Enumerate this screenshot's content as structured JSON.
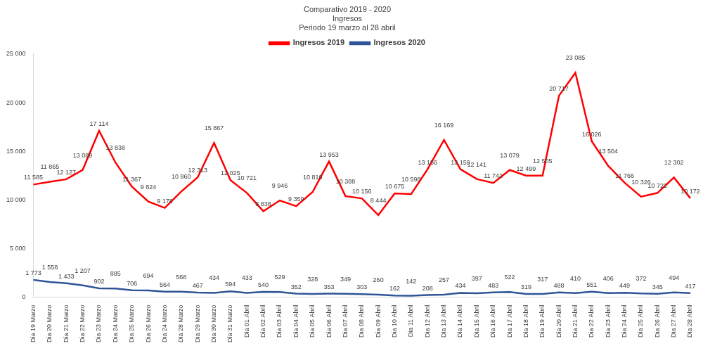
{
  "chart_data": {
    "type": "line",
    "title": [
      "Comparativo 2019 - 2020",
      "Ingresos",
      "Periodo 19 marzo al 28 abril"
    ],
    "categories": [
      "Dia 19 Marzo",
      "Dia 20 Marzo",
      "Dia 21 Marzo",
      "Dia 22 Marzo",
      "Dia 23 Marzo",
      "Dia 24 Marzo",
      "Dia 25 Marzo",
      "Dia 26 Marzo",
      "Dia 24 Marzo",
      "Dia 28 Marzo",
      "Dia 29 Marzo",
      "Dia 30 Marzo",
      "Dia 31 Marzo",
      "Dia 01 Abril",
      "Dia 02 Abril",
      "Dia 03 Abril",
      "Dia 04 Abril",
      "Dia 05 Abril",
      "Dia 06 Abril",
      "Dia 07 Abril",
      "Dia 08 Abril",
      "Dia 09 Abril",
      "Dia 10 Abril",
      "Dia 11 Abril",
      "Dia 12 Abril",
      "Dia 13 Abril",
      "Dia 14 Abril",
      "Dia 15 Abril",
      "Dia 16 Abril",
      "Dia 17 Abril",
      "Dia 18 Abril",
      "Dia 19 Abril",
      "Dia 20 Abril",
      "Dia 21 Abril",
      "Dia 22 Abril",
      "Dia 23 Abril",
      "Dia 24 Abril",
      "Dia 25 Abril",
      "Dia 26 Abril",
      "Dia 27 Abril",
      "Dia 28 Abril"
    ],
    "series": [
      {
        "name": "Ingresos 2019",
        "color": "#ff0000",
        "marker": "none",
        "line_style": "solid",
        "values": [
          11585,
          11865,
          12127,
          13089,
          17114,
          13838,
          11367,
          9824,
          9178,
          10860,
          12313,
          15867,
          12025,
          10721,
          8838,
          9946,
          9359,
          10810,
          13953,
          10388,
          10156,
          8444,
          10675,
          10598,
          13156,
          16169,
          13159,
          12141,
          11742,
          13079,
          12499,
          12505,
          20717,
          23085,
          16026,
          13504,
          11766,
          10326,
          10722,
          12302,
          10172
        ],
        "value_labels": [
          "11 585",
          "11 865",
          "12 127",
          "13 089",
          "17 114",
          "13 838",
          "11 367",
          "9 824",
          "9 178",
          "10 860",
          "12 313",
          "15 867",
          "12 025",
          "10 721",
          "8 838",
          "9 946",
          "9 359",
          "10 810",
          "13 953",
          "10 388",
          "10 156",
          "8 444",
          "10 675",
          "10 598",
          "13 156",
          "16 169",
          "13 159",
          "12 141",
          "11 742",
          "13 079",
          "12 499",
          "12 505",
          "20 717",
          "23 085",
          "16 026",
          "13 504",
          "11 766",
          "10 326",
          "10 722",
          "12 302",
          "10 172"
        ]
      },
      {
        "name": "Ingresos 2020",
        "color": "#2f5597",
        "marker": "none",
        "line_style": "solid",
        "values": [
          1773,
          1558,
          1433,
          1207,
          902,
          885,
          706,
          694,
          564,
          568,
          467,
          434,
          594,
          433,
          540,
          529,
          352,
          328,
          353,
          349,
          303,
          260,
          162,
          142,
          208,
          257,
          434,
          397,
          483,
          522,
          319,
          317,
          488,
          410,
          551,
          406,
          449,
          372,
          345,
          494,
          417
        ],
        "value_labels": [
          "1 773",
          "1 558",
          "1 433",
          "1 207",
          "902",
          "885",
          "706",
          "694",
          "564",
          "568",
          "467",
          "434",
          "594",
          "433",
          "540",
          "529",
          "352",
          "328",
          "353",
          "349",
          "303",
          "260",
          "162",
          "142",
          "208",
          "257",
          "434",
          "397",
          "483",
          "522",
          "319",
          "317",
          "488",
          "410",
          "551",
          "406",
          "449",
          "372",
          "345",
          "494",
          "417"
        ]
      }
    ],
    "ylim": [
      0,
      25000
    ],
    "yticks": [
      0,
      {
        "value": 5000,
        "label": "5 000"
      },
      {
        "value": 10000,
        "label": "10 000"
      },
      {
        "value": 15000,
        "label": "15 000"
      },
      {
        "value": 20000,
        "label": "20 000"
      },
      {
        "value": 25000,
        "label": "25 000"
      }
    ],
    "grid": false,
    "legend": "top",
    "data_labels": true
  }
}
